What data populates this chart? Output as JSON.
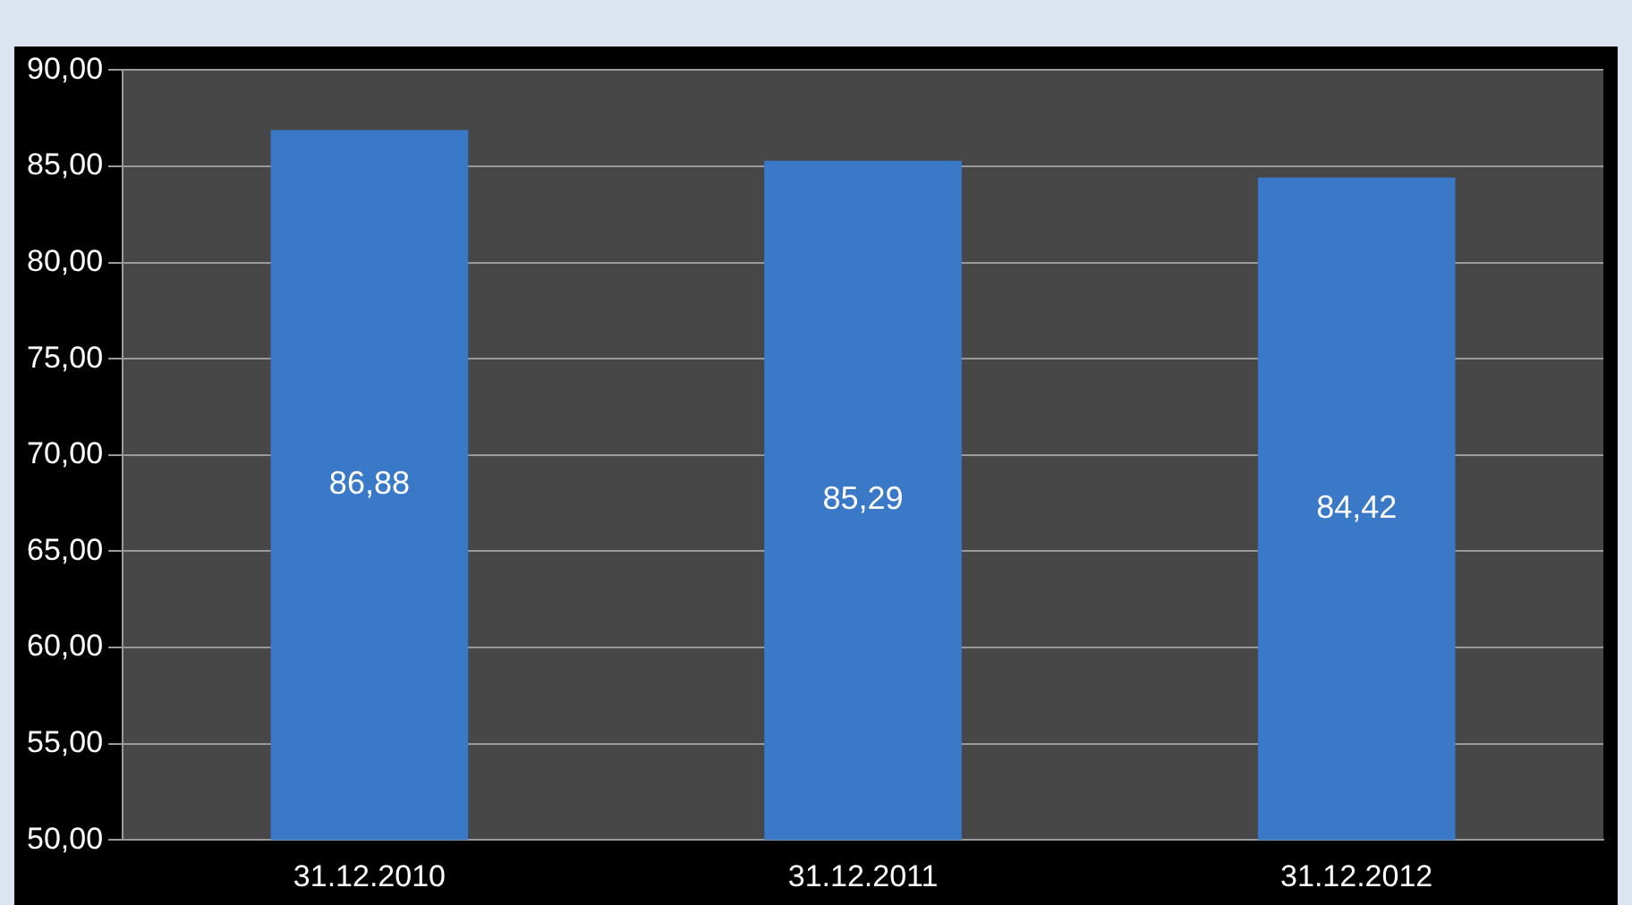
{
  "chart_data": {
    "type": "bar",
    "categories": [
      "31.12.2010",
      "31.12.2011",
      "31.12.2012"
    ],
    "values": [
      86.88,
      85.29,
      84.42
    ],
    "value_labels": [
      "86,88",
      "85,29",
      "84,42"
    ],
    "color": "#3a78c8",
    "ylim": [
      50,
      90
    ],
    "yticks": [
      {
        "value": 50,
        "label": "50,00"
      },
      {
        "value": 55,
        "label": "55,00"
      },
      {
        "value": 60,
        "label": "60,00"
      },
      {
        "value": 65,
        "label": "65,00"
      },
      {
        "value": 70,
        "label": "70,00"
      },
      {
        "value": 75,
        "label": "75,00"
      },
      {
        "value": 80,
        "label": "80,00"
      },
      {
        "value": 85,
        "label": "85,00"
      },
      {
        "value": 90,
        "label": "90,00"
      }
    ],
    "grid": "y",
    "legend": false
  }
}
